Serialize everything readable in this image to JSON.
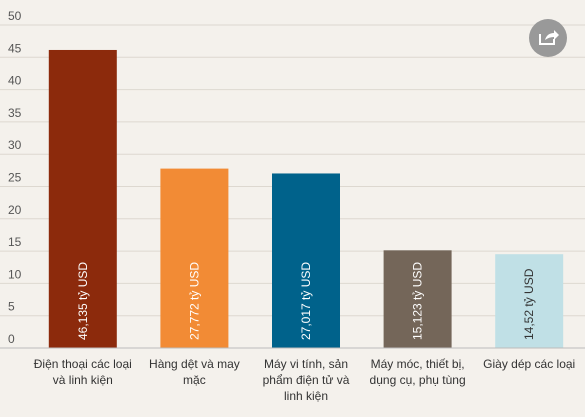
{
  "chart_data": {
    "type": "bar",
    "categories": [
      "Điện thoại các loại và linh kiện",
      "Hàng dệt và may mặc",
      "Máy vi tính, sản phẩm điện tử và linh kiện",
      "Máy móc, thiết bị, dụng cụ, phụ tùng",
      "Giày dép các loại"
    ],
    "series": [
      {
        "values": [
          46.135,
          27.772,
          27.017,
          15.123,
          14.52
        ],
        "value_labels": [
          "46,135 tỷ USD",
          "27,772 tỷ USD",
          "27,017 tỷ USD",
          "15,123 tỷ USD",
          "14,52 tỷ USD"
        ],
        "colors": [
          "#8c2a0c",
          "#f28b35",
          "#00628b",
          "#746659",
          "#c0e0e6"
        ]
      }
    ],
    "ylim": [
      0,
      50
    ],
    "yticks": [
      0,
      5,
      10,
      15,
      20,
      25,
      30,
      35,
      40,
      45,
      50
    ],
    "grid": true
  }
}
